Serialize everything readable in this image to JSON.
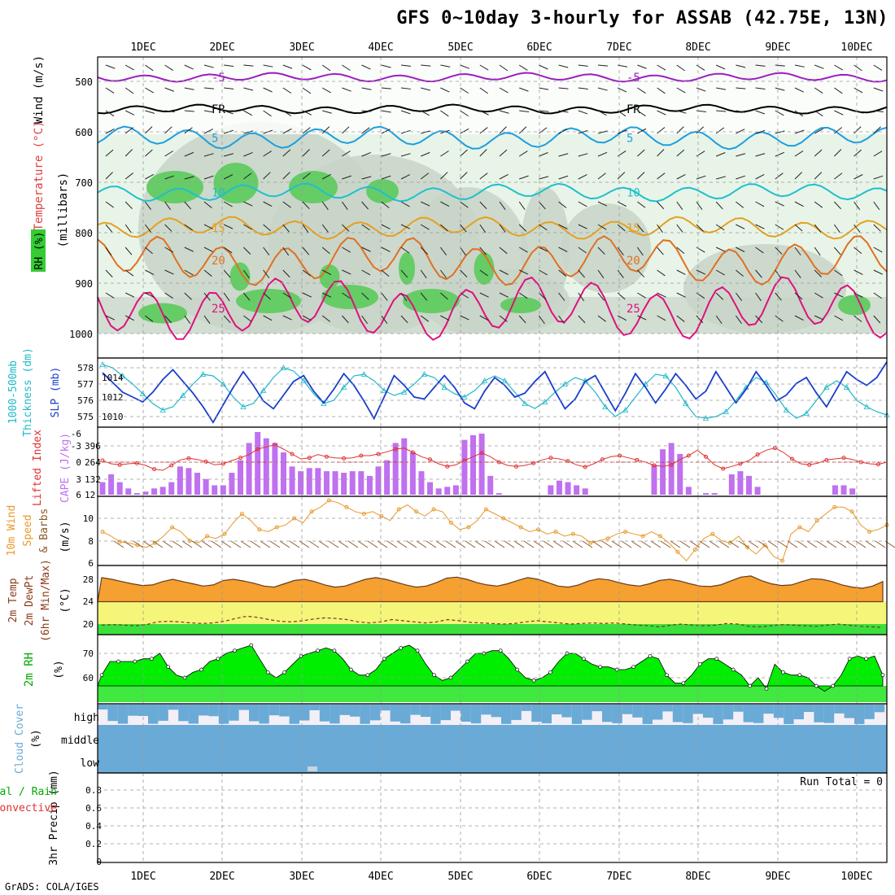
{
  "title": "GFS 0~10day 3-hourly for ASSAB (42.75E, 13N)",
  "footer": "GrADS: COLA/IGES",
  "colors": {
    "rh_green": "#66cc66",
    "rh_pale": "#e8f4e8",
    "rh_gray": "#c8d4c8",
    "temp_purple": "#9b1fbf",
    "temp_black": "#000000",
    "temp_blue": "#1e9ee0",
    "temp_teal": "#1fbfcf",
    "temp_orange": "#e6a020",
    "temp_darkorange": "#e07020",
    "temp_magenta": "#e0107f",
    "thickness": "#1fb8c8",
    "slp": "#1a3ecc",
    "cape": "#c070f0",
    "lifted": "#e03030",
    "wind10": "#e8982a",
    "temp2m_fill": "#f5a030",
    "dewpt_fill": "#f5f57a",
    "rh2m_fill": "#00ee00",
    "cloud": "#6aaad6"
  },
  "chart_data": [
    {
      "type": "heatmap",
      "panel": "upper-air",
      "ylabel_parts": [
        "RH (%)",
        "Temperature (°C)",
        "Wind (m/s)"
      ],
      "yunit": "(millibars)",
      "ylim": [
        1000,
        450
      ],
      "yticks": [
        500,
        600,
        700,
        800,
        900,
        1000
      ],
      "x_ticks": [
        "1DEC",
        "2DEC",
        "3DEC",
        "4DEC",
        "5DEC",
        "6DEC",
        "7DEC",
        "8DEC",
        "9DEC",
        "10DEC"
      ],
      "isotherm_labels": [
        "-5",
        "FR",
        "5",
        "10",
        "15",
        "20",
        "25"
      ],
      "isotherm_levels_mb": {
        "-5": 490,
        "FR": 555,
        "5": 630,
        "10": 720,
        "15": 785,
        "20": 855,
        "25": 950
      }
    },
    {
      "type": "line",
      "panel": "thickness-slp",
      "ylabel_left": "1000-500mb Thickness (dm)",
      "ylabel_right": "SLP (mb)",
      "y_left_ticks": [
        575,
        576,
        577,
        578
      ],
      "y_right_ticks": [
        1010,
        1012,
        1014
      ],
      "series": [
        {
          "name": "thickness",
          "values": [
            578.2,
            578.0,
            577.5,
            577.0,
            576.4,
            575.8,
            575.4,
            575.6,
            576.3,
            577.0,
            577.6,
            577.5,
            577.0,
            576.2,
            575.6,
            575.8,
            576.6,
            577.4,
            578.0,
            577.8,
            577.2,
            576.4,
            575.8,
            576.0,
            576.8,
            577.5,
            577.6,
            577.2,
            576.6,
            576.3,
            576.5,
            577.0,
            577.6,
            577.4,
            576.8,
            576.4,
            576.2,
            576.6,
            577.2,
            577.5,
            577.2,
            576.5,
            575.8,
            575.5,
            575.9,
            576.5,
            577.0,
            577.4,
            577.2,
            576.5,
            575.6,
            575.0,
            575.4,
            576.2,
            577.0,
            577.6,
            577.5,
            576.8,
            575.8,
            575.0,
            574.9,
            575.0,
            575.3,
            576.0,
            576.8,
            577.4,
            577.1,
            576.3,
            575.4,
            574.9,
            575.2,
            576.0,
            576.8,
            577.2,
            576.8,
            576.0,
            575.6,
            575.3,
            575.1
          ]
        },
        {
          "name": "slp",
          "values": [
            1014.5,
            1013.5,
            1012.5,
            1012.0,
            1011.5,
            1012.5,
            1013.8,
            1014.8,
            1013.6,
            1012.4,
            1011.0,
            1009.4,
            1011.2,
            1013.0,
            1014.6,
            1013.2,
            1011.6,
            1010.8,
            1012.2,
            1013.6,
            1014.2,
            1012.6,
            1011.4,
            1012.8,
            1014.4,
            1013.2,
            1011.6,
            1009.8,
            1012.0,
            1014.2,
            1013.2,
            1012.0,
            1011.8,
            1013.0,
            1014.2,
            1013.0,
            1011.4,
            1010.8,
            1012.6,
            1014.0,
            1013.2,
            1012.0,
            1012.4,
            1013.6,
            1014.6,
            1012.6,
            1010.8,
            1011.8,
            1013.6,
            1014.2,
            1012.4,
            1010.6,
            1012.4,
            1014.4,
            1013.0,
            1011.4,
            1012.8,
            1014.4,
            1013.2,
            1011.8,
            1012.6,
            1014.6,
            1013.0,
            1011.4,
            1012.8,
            1014.6,
            1013.2,
            1011.6,
            1012.2,
            1013.4,
            1014.0,
            1012.4,
            1011.0,
            1012.8,
            1014.6,
            1013.8,
            1013.2,
            1014.0,
            1015.6
          ]
        }
      ]
    },
    {
      "type": "bar",
      "panel": "cape-lifted-index",
      "ylabel_left": "Lifted Index",
      "ylabel_right": "CAPE (J/kg)",
      "y_left_ticks": [
        -3,
        0,
        3,
        6
      ],
      "y_cape_ticks": [
        12,
        132,
        264,
        396
      ],
      "series": [
        {
          "name": "CAPE",
          "values": [
            96,
            156,
            96,
            48,
            12,
            24,
            48,
            60,
            96,
            216,
            204,
            168,
            120,
            72,
            72,
            168,
            264,
            396,
            480,
            432,
            396,
            324,
            216,
            180,
            204,
            204,
            180,
            180,
            168,
            180,
            180,
            144,
            216,
            264,
            396,
            432,
            324,
            180,
            96,
            48,
            60,
            72,
            420,
            456,
            468,
            144,
            12,
            0,
            0,
            0,
            0,
            0,
            72,
            108,
            96,
            72,
            48,
            0,
            0,
            0,
            0,
            0,
            0,
            0,
            228,
            348,
            396,
            312,
            60,
            0,
            12,
            12,
            0,
            156,
            180,
            144,
            60,
            0,
            0,
            0,
            0,
            0,
            0,
            0,
            0,
            72,
            72,
            48,
            0,
            0,
            0,
            0
          ]
        },
        {
          "name": "Lifted Index",
          "values": [
            -0.3,
            0.3,
            0.5,
            0.3,
            0.2,
            0.6,
            1.3,
            1.5,
            0.6,
            -0.4,
            -0.7,
            -0.5,
            -0.1,
            0.5,
            0.3,
            -0.3,
            -0.8,
            -1.4,
            -2.4,
            -2.8,
            -3.2,
            -2.4,
            -1.5,
            -0.6,
            -0.8,
            -1.4,
            -1.0,
            -0.8,
            -0.7,
            -0.8,
            -1.2,
            -1.2,
            -1.5,
            -1.9,
            -2.4,
            -2.6,
            -1.8,
            -1.0,
            -0.5,
            0.3,
            0.8,
            0.5,
            -0.3,
            -1.0,
            -1.7,
            -1.0,
            0.0,
            0.6,
            0.8,
            0.6,
            0.2,
            -0.4,
            -0.8,
            -0.6,
            -0.2,
            0.5,
            0.9,
            0.3,
            -0.5,
            -1.0,
            -1.2,
            -0.8,
            -0.4,
            0.0,
            0.6,
            0.8,
            0.5,
            -0.5,
            -1.2,
            -2.2,
            -1.0,
            0.5,
            1.2,
            0.8,
            0.3,
            -0.3,
            -1.4,
            -2.2,
            -2.6,
            -1.8,
            -0.6,
            0.3,
            0.5,
            0.2,
            -0.4,
            -0.6,
            -0.8,
            -0.5,
            0.0,
            0.3,
            0.4,
            0.0
          ]
        }
      ]
    },
    {
      "type": "line",
      "panel": "10m-wind",
      "ylabel": "10m Wind Speed & Barbs (m/s)",
      "y_ticks": [
        6,
        8,
        10
      ],
      "series": [
        {
          "name": "10m Wind Speed",
          "values": [
            8.8,
            8.4,
            7.9,
            7.8,
            7.6,
            7.4,
            7.8,
            8.4,
            9.2,
            8.8,
            8.0,
            7.8,
            8.4,
            8.2,
            8.6,
            9.6,
            10.4,
            9.8,
            9.0,
            8.8,
            9.2,
            9.4,
            10.0,
            9.6,
            10.6,
            11.0,
            11.6,
            11.4,
            11.0,
            10.6,
            10.4,
            10.6,
            10.2,
            9.8,
            10.8,
            11.2,
            10.6,
            10.2,
            10.8,
            10.6,
            9.6,
            9.0,
            9.2,
            9.8,
            10.8,
            10.4,
            10.0,
            9.6,
            9.2,
            8.8,
            9.0,
            8.6,
            8.8,
            8.4,
            8.6,
            8.4,
            7.8,
            8.0,
            8.2,
            8.6,
            8.8,
            8.6,
            8.4,
            8.8,
            8.4,
            7.8,
            7.0,
            6.2,
            7.2,
            8.2,
            8.6,
            8.0,
            7.8,
            8.4,
            7.4,
            6.8,
            7.6,
            6.6,
            6.2,
            8.6,
            9.2,
            8.8,
            9.8,
            10.4,
            11.0,
            11.0,
            10.6,
            9.4,
            8.8,
            9.0,
            9.4
          ]
        }
      ]
    },
    {
      "type": "area",
      "panel": "2m-temp-dewpt",
      "ylabel": "2m Temp 2m DewPt (6hr Min/Max) (°C)",
      "y_ticks": [
        20,
        24,
        28
      ],
      "series": [
        {
          "name": "2m Temp",
          "values": [
            28.3,
            28.0,
            27.6,
            27.2,
            26.9,
            27.0,
            27.6,
            28.0,
            27.6,
            27.2,
            26.8,
            27.0,
            27.8,
            28.0,
            27.7,
            27.3,
            26.8,
            26.6,
            27.2,
            27.8,
            28.0,
            27.6,
            27.0,
            26.6,
            26.8,
            27.4,
            28.0,
            28.3,
            28.0,
            27.5,
            27.0,
            26.6,
            26.8,
            27.4,
            28.2,
            28.4,
            28.0,
            27.4,
            27.0,
            26.8,
            27.2,
            27.8,
            28.3,
            28.0,
            27.4,
            26.8,
            26.6,
            27.0,
            27.7,
            28.1,
            27.9,
            27.4,
            27.0,
            26.8,
            27.2,
            27.8,
            28.0,
            27.7,
            27.2,
            26.8,
            26.7,
            27.0,
            27.7,
            28.4,
            28.6,
            27.8,
            27.2,
            26.9,
            27.0,
            27.6,
            28.1,
            28.0,
            27.6,
            27.0,
            26.6,
            26.4,
            26.8,
            27.6
          ]
        },
        {
          "name": "2m DewPt",
          "values": [
            19.8,
            19.9,
            19.8,
            19.7,
            19.9,
            20.4,
            20.5,
            20.4,
            20.2,
            20.1,
            20.2,
            20.5,
            21.0,
            21.4,
            21.2,
            20.8,
            20.5,
            20.4,
            20.6,
            20.9,
            21.1,
            21.0,
            20.8,
            20.4,
            20.2,
            20.4,
            20.8,
            20.6,
            20.4,
            20.2,
            20.4,
            20.8,
            20.6,
            20.3,
            20.2,
            20.1,
            20.0,
            20.1,
            20.4,
            20.6,
            20.4,
            20.2,
            20.0,
            20.1,
            20.2,
            20.1,
            20.2,
            20.0,
            19.8,
            19.7,
            19.5,
            19.8,
            20.0,
            19.8,
            19.7,
            19.8,
            20.1,
            20.0,
            19.6,
            19.5,
            19.7,
            19.9,
            19.8,
            19.7,
            19.6,
            19.8,
            20.0,
            19.8,
            19.6,
            19.5,
            19.4
          ]
        }
      ]
    },
    {
      "type": "area",
      "panel": "2m-rh",
      "ylabel": "2m RH (%)",
      "y_ticks": [
        60,
        70
      ],
      "series": [
        {
          "name": "2m RH",
          "values": [
            64,
            69,
            69,
            69,
            69,
            70,
            70,
            72,
            67,
            64,
            63,
            65,
            66,
            69,
            70,
            72,
            73,
            74,
            75,
            70,
            65,
            63,
            65,
            68,
            71,
            72,
            73,
            74,
            73,
            70,
            66,
            64,
            64,
            66,
            70,
            72,
            74,
            75,
            73,
            68,
            64,
            62,
            63,
            66,
            69,
            72,
            72,
            73,
            73,
            70,
            66,
            63,
            62,
            63,
            65,
            69,
            72,
            72,
            70,
            68,
            67,
            67,
            66,
            66,
            67,
            69,
            71,
            70,
            64,
            61,
            61,
            64,
            68,
            70,
            70,
            68,
            66,
            64,
            60,
            63,
            59,
            68,
            65,
            64,
            64,
            63,
            60,
            58,
            60,
            64,
            70,
            71,
            70,
            71,
            64
          ]
        }
      ]
    },
    {
      "type": "heatmap",
      "panel": "cloud-cover",
      "ylabel": "Cloud Cover (%)",
      "layers": [
        "high",
        "middle",
        "low"
      ]
    },
    {
      "type": "bar",
      "panel": "precip",
      "ylabel": "3hr Precip (mm)",
      "left_label_top": "Total / Rain",
      "left_label_bottom": "Convective",
      "y_ticks": [
        0,
        0.2,
        0.4,
        0.6,
        0.8
      ],
      "annotation": "Run Total = 0",
      "series": [
        {
          "name": "3hr Precip",
          "values": [
            0
          ]
        }
      ]
    }
  ],
  "labels": {
    "rh": "RH (%)",
    "temperature": "Temperature (°C)",
    "wind": "Wind (m/s)",
    "millibars": "(millibars)",
    "thickness_1": "1000-500mb",
    "thickness_2": "Thickness (dm)",
    "slp": "SLP (mb)",
    "lifted": "Lifted Index",
    "cape": "CAPE (J/kg)",
    "wind10_1": "10m Wind",
    "wind10_2": "Speed",
    "wind10_3": "& Barbs",
    "ms": "(m/s)",
    "t2m_1": "2m Temp",
    "t2m_2": "2m DewPt",
    "t2m_3": "(6hr Min/Max)",
    "degc": "(°C)",
    "rh2m": "2m RH",
    "pct": "(%)",
    "cloud_1": "Cloud Cover",
    "cloud_high": "high",
    "cloud_middle": "middle",
    "cloud_low": "low",
    "precip_1": "3hr Precip (mm)",
    "precip_total": "tal / Rain",
    "precip_conv": "Convective",
    "run_total": "Run Total = 0"
  }
}
